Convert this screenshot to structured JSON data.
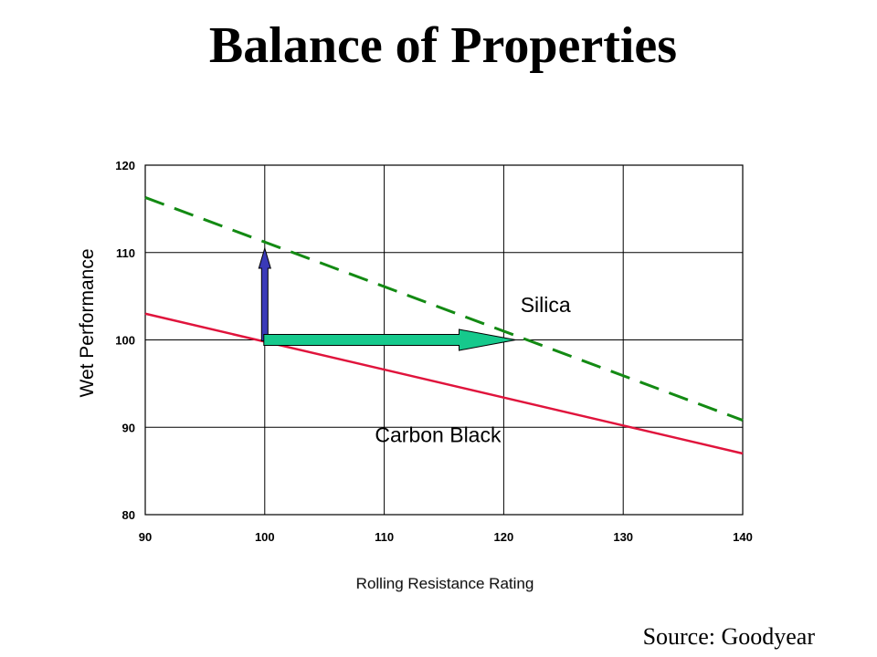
{
  "slide": {
    "title": "Balance of Properties",
    "source": "Source: Goodyear"
  },
  "chart_data": {
    "type": "line",
    "xlabel": "Rolling Resistance Rating",
    "ylabel": "Wet Performance",
    "xlim": [
      90,
      140
    ],
    "ylim": [
      80,
      120
    ],
    "xticks": [
      90,
      100,
      110,
      120,
      130,
      140
    ],
    "yticks": [
      80,
      90,
      100,
      110,
      120
    ],
    "grid": true,
    "series": [
      {
        "name": "Carbon Black",
        "style": "solid",
        "color": "#e0143c",
        "x": [
          90,
          140
        ],
        "y": [
          103,
          87
        ]
      },
      {
        "name": "Silica",
        "style": "dashed",
        "color": "#138a13",
        "x": [
          90,
          140
        ],
        "y": [
          116.3,
          90.8
        ]
      }
    ],
    "annotations": [
      {
        "type": "arrow",
        "color": "#3a3ab8",
        "from": [
          100,
          100
        ],
        "to": [
          100,
          110.5
        ]
      },
      {
        "type": "arrow",
        "color": "#16c98c",
        "from": [
          100,
          100
        ],
        "to": [
          121,
          100
        ]
      }
    ],
    "series_labels": [
      {
        "series": "Silica",
        "x": 123.5,
        "y": 103.2
      },
      {
        "series": "Carbon Black",
        "x": 114.5,
        "y": 88.3
      }
    ]
  }
}
